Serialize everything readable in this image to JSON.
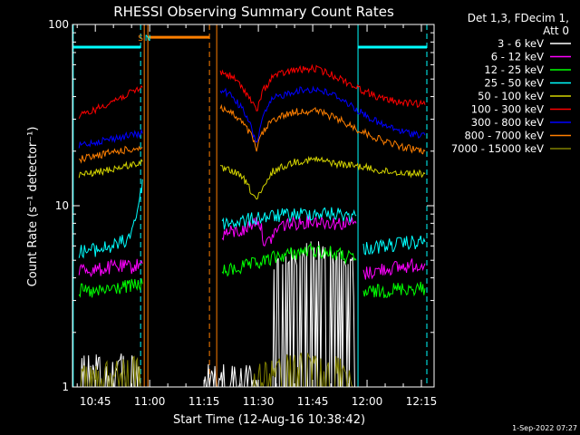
{
  "chart_data": {
    "type": "line",
    "title": "RHESSI Observing Summary Count Rates",
    "xlabel": "Start Time (12-Aug-16 10:38:42)",
    "ylabel": "Count Rate (s⁻¹ detector⁻¹)",
    "yscale": "log",
    "ylim": [
      1,
      100
    ],
    "xlim_minutes": [
      38.7,
      138.5
    ],
    "x_tick_labels": [
      "10:45",
      "11:00",
      "11:15",
      "11:30",
      "11:45",
      "12:00",
      "12:15"
    ],
    "x_tick_minutes": [
      45,
      60,
      75,
      90,
      105,
      120,
      135
    ],
    "y_tick_labels": [
      "1",
      "10",
      "100"
    ],
    "y_tick_values": [
      1,
      10,
      100
    ],
    "legend_header": [
      "Det 1,3, FDecim 1,",
      "Att 0"
    ],
    "legend_position": "right",
    "series": [
      {
        "name": "3 - 6 keV",
        "color": "#ffffff",
        "segments": [
          [
            [
              41,
              1.2
            ],
            [
              48,
              1.15
            ],
            [
              56,
              1.2
            ],
            [
              57.5,
              1.0
            ]
          ],
          [
            [
              94,
              4.0
            ],
            [
              100,
              4.6
            ],
            [
              106,
              5.0
            ],
            [
              112,
              4.5
            ],
            [
              116,
              4.0
            ],
            [
              117.5,
              1.0
            ]
          ],
          [
            [
              75,
              1.0
            ],
            [
              76.5,
              1.1
            ],
            [
              90,
              1.0
            ]
          ]
        ]
      },
      {
        "name": "6 - 12 keV",
        "color": "#ff00ff",
        "segments": [
          [
            [
              40.5,
              4.5
            ],
            [
              45,
              4.4
            ],
            [
              50,
              4.6
            ],
            [
              55,
              4.6
            ],
            [
              58,
              4.8
            ]
          ],
          [
            [
              80,
              7.0
            ],
            [
              86,
              7.3
            ],
            [
              90,
              8.5
            ],
            [
              92,
              6.0
            ],
            [
              96,
              7.8
            ],
            [
              105,
              8.3
            ],
            [
              112,
              8.0
            ],
            [
              117,
              8.0
            ]
          ],
          [
            [
              119,
              4.2
            ],
            [
              125,
              4.5
            ],
            [
              130,
              4.6
            ],
            [
              136,
              4.8
            ]
          ]
        ]
      },
      {
        "name": "12 - 25 keV",
        "color": "#00ff00",
        "segments": [
          [
            [
              40.5,
              3.4
            ],
            [
              45,
              3.3
            ],
            [
              50,
              3.5
            ],
            [
              55,
              3.6
            ],
            [
              58,
              3.7
            ]
          ],
          [
            [
              80,
              4.3
            ],
            [
              86,
              4.6
            ],
            [
              90,
              4.8
            ],
            [
              96,
              5.3
            ],
            [
              105,
              5.7
            ],
            [
              112,
              5.4
            ],
            [
              117,
              5.0
            ]
          ],
          [
            [
              119,
              3.3
            ],
            [
              125,
              3.4
            ],
            [
              130,
              3.5
            ],
            [
              136,
              3.5
            ]
          ]
        ]
      },
      {
        "name": "25 - 50 keV",
        "color": "#00ffff",
        "segments": [
          [
            [
              40.5,
              5.6
            ],
            [
              45,
              5.7
            ],
            [
              50,
              6.0
            ],
            [
              54,
              6.5
            ],
            [
              56,
              8.5
            ],
            [
              57.5,
              11.5
            ],
            [
              58,
              14
            ]
          ],
          [
            [
              80,
              8.0
            ],
            [
              86,
              8.2
            ],
            [
              90,
              8.6
            ],
            [
              96,
              8.8
            ],
            [
              105,
              9.1
            ],
            [
              112,
              9.0
            ],
            [
              117,
              8.8
            ]
          ],
          [
            [
              119,
              5.8
            ],
            [
              125,
              6.0
            ],
            [
              130,
              6.2
            ],
            [
              136,
              6.3
            ]
          ]
        ]
      },
      {
        "name": "50 - 100 keV",
        "color": "#d4d400",
        "segments": [
          [
            [
              40.5,
              14.8
            ],
            [
              45,
              15.2
            ],
            [
              50,
              16.0
            ],
            [
              55,
              16.8
            ],
            [
              58,
              17.5
            ]
          ],
          [
            [
              79.5,
              16.0
            ],
            [
              83,
              15.5
            ],
            [
              86,
              14.0
            ],
            [
              88,
              12.0
            ],
            [
              89.5,
              10.8
            ],
            [
              91,
              12.0
            ],
            [
              94,
              15.5
            ],
            [
              100,
              17.5
            ],
            [
              106,
              18.0
            ],
            [
              112,
              17.0
            ],
            [
              118,
              16.5
            ],
            [
              124,
              15.5
            ],
            [
              130,
              15.2
            ],
            [
              136,
              15.0
            ]
          ]
        ]
      },
      {
        "name": "100 - 300 keV",
        "color": "#ff0000",
        "segments": [
          [
            [
              40.5,
              31
            ],
            [
              45,
              34
            ],
            [
              50,
              38
            ],
            [
              55,
              42
            ],
            [
              58,
              45
            ]
          ],
          [
            [
              79.5,
              55
            ],
            [
              83,
              51
            ],
            [
              86,
              44
            ],
            [
              88,
              38
            ],
            [
              89.5,
              33
            ],
            [
              91,
              42
            ],
            [
              94,
              52
            ],
            [
              100,
              56
            ],
            [
              106,
              57
            ],
            [
              112,
              51
            ],
            [
              118,
              44
            ],
            [
              124,
              39
            ],
            [
              130,
              37
            ],
            [
              136,
              36
            ]
          ]
        ]
      },
      {
        "name": "300 - 800 keV",
        "color": "#0000ff",
        "segments": [
          [
            [
              40.5,
              21.5
            ],
            [
              45,
              22.5
            ],
            [
              50,
              23.5
            ],
            [
              55,
              24.5
            ],
            [
              58,
              25
            ]
          ],
          [
            [
              79.5,
              44
            ],
            [
              83,
              40
            ],
            [
              86,
              33
            ],
            [
              88,
              27
            ],
            [
              89.5,
              22
            ],
            [
              91,
              30
            ],
            [
              94,
              39
            ],
            [
              100,
              43
            ],
            [
              106,
              44
            ],
            [
              112,
              40
            ],
            [
              118,
              33
            ],
            [
              124,
              28
            ],
            [
              130,
              25.5
            ],
            [
              136,
              24.5
            ]
          ]
        ]
      },
      {
        "name": "800 - 7000 keV",
        "color": "#ff7f00",
        "segments": [
          [
            [
              40.5,
              18.0
            ],
            [
              45,
              18.8
            ],
            [
              50,
              19.8
            ],
            [
              55,
              20.5
            ],
            [
              58,
              21
            ]
          ],
          [
            [
              79.5,
              35
            ],
            [
              83,
              32
            ],
            [
              86,
              28
            ],
            [
              88,
              24.5
            ],
            [
              89.5,
              20.5
            ],
            [
              91,
              25
            ],
            [
              94,
              30
            ],
            [
              100,
              33
            ],
            [
              106,
              33.5
            ],
            [
              112,
              30
            ],
            [
              118,
              26
            ],
            [
              124,
              23
            ],
            [
              130,
              21
            ],
            [
              136,
              20
            ]
          ]
        ]
      },
      {
        "name": "7000 - 15000 keV",
        "color": "#808000",
        "segments": [
          [
            [
              41,
              1.0
            ],
            [
              56,
              1.2
            ],
            [
              57.5,
              1.0
            ]
          ],
          [
            [
              88,
              1.0
            ],
            [
              100,
              1.2
            ],
            [
              112,
              1.15
            ],
            [
              116,
              1.0
            ]
          ]
        ]
      }
    ],
    "annotations": [
      {
        "text": "S",
        "color": "#ff7f00",
        "x": 57.5
      },
      {
        "text": "N",
        "color": "#00ffff",
        "x": 59.5
      }
    ],
    "flag_bars": [
      {
        "color": "#00ffff",
        "from": 38.7,
        "to": 57.5,
        "y": 75
      },
      {
        "color": "#ff7f00",
        "from": 59.5,
        "to": 76.5,
        "y": 85
      },
      {
        "color": "#00ffff",
        "from": 117.5,
        "to": 136.5,
        "y": 75
      }
    ],
    "vlines": [
      {
        "x": 38.9,
        "color": "#00ffff",
        "dashed": false
      },
      {
        "x": 57.5,
        "color": "#00ffff",
        "dashed": true
      },
      {
        "x": 58.5,
        "color": "#ff7f00",
        "dashed": false
      },
      {
        "x": 59.5,
        "color": "#ff7f00",
        "dashed": false
      },
      {
        "x": 76.5,
        "color": "#ff7f00",
        "dashed": true
      },
      {
        "x": 78.5,
        "color": "#ff7f00",
        "dashed": false
      },
      {
        "x": 117.5,
        "color": "#00ffff",
        "dashed": false
      },
      {
        "x": 136.5,
        "color": "#00ffff",
        "dashed": true
      }
    ],
    "footer_date": "1-Sep-2022 07:27"
  }
}
